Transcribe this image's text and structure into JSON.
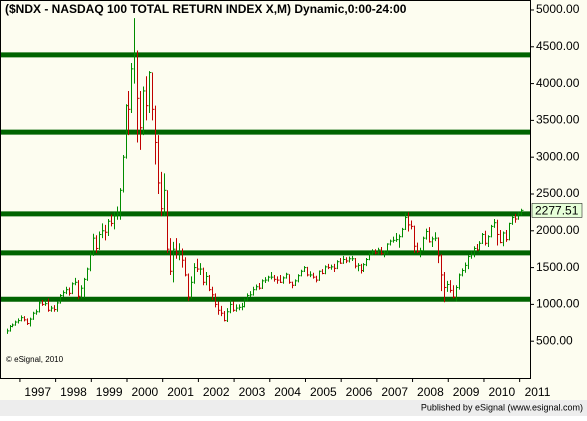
{
  "chart_data": {
    "type": "hlc",
    "title": "($NDX - NASDAQ 100 TOTAL RETURN INDEX X,M) Dynamic,0:00-24:00",
    "watermark": "© eSignal, 2010",
    "footer": "Published by eSignal (www.esignal.com)",
    "up_color": "#008c00",
    "down_color": "#c00000",
    "level_color": "#006400",
    "levels": [
      4390,
      3340,
      2230,
      1700,
      1070
    ],
    "xlim": [
      1996.47,
      2011.29
    ],
    "xticks": [
      1997,
      1998,
      1999,
      2000,
      2001,
      2002,
      2003,
      2004,
      2005,
      2006,
      2007,
      2008,
      2009,
      2010,
      2011
    ],
    "ylim": [
      0,
      5122
    ],
    "yticks": [
      {
        "value": 500,
        "label": "500.00"
      },
      {
        "value": 1000,
        "label": "1000.00"
      },
      {
        "value": 1500,
        "label": "1500.00"
      },
      {
        "value": 2000,
        "label": "2000.00"
      },
      {
        "value": 2500,
        "label": "2500.00"
      },
      {
        "value": 3000,
        "label": "3000.00"
      },
      {
        "value": 3500,
        "label": "3500.00"
      },
      {
        "value": 4000,
        "label": "4000.00"
      },
      {
        "value": 4500,
        "label": "4500.00"
      },
      {
        "value": 5000,
        "label": "5000.00"
      }
    ],
    "x": [
      "1996-08",
      "1996-09",
      "1996-10",
      "1996-11",
      "1996-12",
      "1997-01",
      "1997-02",
      "1997-03",
      "1997-04",
      "1997-05",
      "1997-06",
      "1997-07",
      "1997-08",
      "1997-09",
      "1997-10",
      "1997-11",
      "1997-12",
      "1998-01",
      "1998-02",
      "1998-03",
      "1998-04",
      "1998-05",
      "1998-06",
      "1998-07",
      "1998-08",
      "1998-09",
      "1998-10",
      "1998-11",
      "1998-12",
      "1999-01",
      "1999-02",
      "1999-03",
      "1999-04",
      "1999-05",
      "1999-06",
      "1999-07",
      "1999-08",
      "1999-09",
      "1999-10",
      "1999-11",
      "1999-12",
      "2000-01",
      "2000-02",
      "2000-03",
      "2000-04",
      "2000-05",
      "2000-06",
      "2000-07",
      "2000-08",
      "2000-09",
      "2000-10",
      "2000-11",
      "2000-12",
      "2001-01",
      "2001-02",
      "2001-03",
      "2001-04",
      "2001-05",
      "2001-06",
      "2001-07",
      "2001-08",
      "2001-09",
      "2001-10",
      "2001-11",
      "2001-12",
      "2002-01",
      "2002-02",
      "2002-03",
      "2002-04",
      "2002-05",
      "2002-06",
      "2002-07",
      "2002-08",
      "2002-09",
      "2002-10",
      "2002-11",
      "2002-12",
      "2003-01",
      "2003-02",
      "2003-03",
      "2003-04",
      "2003-05",
      "2003-06",
      "2003-07",
      "2003-08",
      "2003-09",
      "2003-10",
      "2003-11",
      "2003-12",
      "2004-01",
      "2004-02",
      "2004-03",
      "2004-04",
      "2004-05",
      "2004-06",
      "2004-07",
      "2004-08",
      "2004-09",
      "2004-10",
      "2004-11",
      "2004-12",
      "2005-01",
      "2005-02",
      "2005-03",
      "2005-04",
      "2005-05",
      "2005-06",
      "2005-07",
      "2005-08",
      "2005-09",
      "2005-10",
      "2005-11",
      "2005-12",
      "2006-01",
      "2006-02",
      "2006-03",
      "2006-04",
      "2006-05",
      "2006-06",
      "2006-07",
      "2006-08",
      "2006-09",
      "2006-10",
      "2006-11",
      "2006-12",
      "2007-01",
      "2007-02",
      "2007-03",
      "2007-04",
      "2007-05",
      "2007-06",
      "2007-07",
      "2007-08",
      "2007-09",
      "2007-10",
      "2007-11",
      "2007-12",
      "2008-01",
      "2008-02",
      "2008-03",
      "2008-04",
      "2008-05",
      "2008-06",
      "2008-07",
      "2008-08",
      "2008-09",
      "2008-10",
      "2008-11",
      "2008-12",
      "2009-01",
      "2009-02",
      "2009-03",
      "2009-04",
      "2009-05",
      "2009-06",
      "2009-07",
      "2009-08",
      "2009-09",
      "2009-10",
      "2009-11",
      "2009-12",
      "2010-01",
      "2010-02",
      "2010-03",
      "2010-04",
      "2010-05",
      "2010-06",
      "2010-07",
      "2010-08",
      "2010-09",
      "2010-10",
      "2010-11",
      "2010-12",
      "2011-01"
    ],
    "high": [
      670,
      720,
      740,
      780,
      810,
      850,
      840,
      810,
      820,
      900,
      930,
      1050,
      1060,
      1060,
      1080,
      980,
      990,
      1040,
      1140,
      1190,
      1240,
      1230,
      1300,
      1360,
      1330,
      1260,
      1360,
      1500,
      1710,
      1960,
      1940,
      1990,
      2100,
      2080,
      2160,
      2220,
      2250,
      2330,
      2580,
      3030,
      3720,
      3900,
      4280,
      4890,
      4450,
      3900,
      3960,
      4100,
      4170,
      4150,
      3700,
      3300,
      2800,
      2780,
      2550,
      1900,
      1850,
      1900,
      1830,
      1760,
      1640,
      1420,
      1380,
      1560,
      1620,
      1560,
      1500,
      1440,
      1400,
      1240,
      1150,
      1040,
      980,
      910,
      950,
      1060,
      1040,
      1000,
      1000,
      1020,
      1080,
      1150,
      1180,
      1240,
      1270,
      1290,
      1340,
      1370,
      1390,
      1440,
      1400,
      1380,
      1400,
      1380,
      1430,
      1410,
      1310,
      1340,
      1410,
      1470,
      1520,
      1510,
      1450,
      1430,
      1390,
      1460,
      1480,
      1530,
      1550,
      1540,
      1550,
      1600,
      1630,
      1660,
      1640,
      1650,
      1660,
      1630,
      1560,
      1550,
      1560,
      1630,
      1700,
      1750,
      1750,
      1770,
      1780,
      1730,
      1830,
      1880,
      1920,
      1970,
      1950,
      2040,
      2240,
      2250,
      2140,
      2070,
      1840,
      1770,
      1920,
      2030,
      2050,
      1920,
      1980,
      1910,
      1680,
      1440,
      1320,
      1330,
      1260,
      1260,
      1420,
      1490,
      1570,
      1670,
      1720,
      1790,
      1820,
      1860,
      1970,
      2000,
      1940,
      2080,
      2160,
      2150,
      2010,
      1990,
      2010,
      2110,
      2210,
      2230,
      2250,
      2300
    ],
    "low": [
      600,
      630,
      690,
      710,
      740,
      770,
      770,
      720,
      700,
      790,
      860,
      890,
      980,
      980,
      900,
      900,
      900,
      900,
      1010,
      1100,
      1140,
      1120,
      1140,
      1260,
      1070,
      1080,
      1090,
      1320,
      1450,
      1660,
      1700,
      1740,
      1900,
      1870,
      1930,
      2060,
      2020,
      2150,
      2150,
      2520,
      2980,
      3300,
      3600,
      4000,
      3200,
      3100,
      3300,
      3500,
      3600,
      3500,
      2900,
      2500,
      2200,
      2200,
      1700,
      1400,
      1300,
      1620,
      1600,
      1500,
      1380,
      1050,
      1080,
      1280,
      1440,
      1400,
      1260,
      1260,
      1180,
      1060,
      960,
      860,
      840,
      770,
      760,
      880,
      900,
      900,
      920,
      920,
      960,
      1050,
      1100,
      1120,
      1190,
      1200,
      1210,
      1290,
      1310,
      1340,
      1310,
      1280,
      1290,
      1280,
      1350,
      1280,
      1220,
      1250,
      1300,
      1380,
      1440,
      1380,
      1370,
      1350,
      1300,
      1320,
      1410,
      1410,
      1480,
      1470,
      1440,
      1480,
      1550,
      1550,
      1560,
      1570,
      1590,
      1490,
      1450,
      1420,
      1440,
      1520,
      1600,
      1670,
      1680,
      1680,
      1670,
      1640,
      1690,
      1800,
      1840,
      1850,
      1770,
      1910,
      2010,
      1990,
      2020,
      1700,
      1700,
      1640,
      1720,
      1880,
      1840,
      1780,
      1860,
      1560,
      1180,
      1030,
      1170,
      1160,
      1080,
      1040,
      1200,
      1380,
      1430,
      1480,
      1620,
      1640,
      1730,
      1710,
      1820,
      1800,
      1780,
      1910,
      2040,
      1800,
      1830,
      1790,
      1850,
      1870,
      2080,
      2110,
      2150,
      2210
    ],
    "close": [
      640,
      700,
      720,
      760,
      780,
      820,
      790,
      740,
      800,
      880,
      900,
      1020,
      1000,
      1010,
      920,
      950,
      930,
      1020,
      1120,
      1160,
      1200,
      1150,
      1280,
      1300,
      1110,
      1220,
      1340,
      1480,
      1680,
      1900,
      1760,
      1950,
      2000,
      1980,
      2130,
      2100,
      2200,
      2230,
      2550,
      3000,
      3700,
      3650,
      4200,
      4400,
      3800,
      3400,
      3900,
      3700,
      4150,
      3650,
      3200,
      2650,
      2300,
      2550,
      1750,
      1450,
      1750,
      1700,
      1700,
      1600,
      1400,
      1100,
      1300,
      1500,
      1480,
      1480,
      1300,
      1380,
      1200,
      1130,
      1000,
      920,
      880,
      780,
      900,
      1000,
      920,
      950,
      960,
      970,
      1060,
      1120,
      1130,
      1200,
      1240,
      1220,
      1320,
      1330,
      1370,
      1370,
      1340,
      1330,
      1300,
      1360,
      1410,
      1300,
      1260,
      1320,
      1390,
      1450,
      1500,
      1400,
      1400,
      1370,
      1330,
      1450,
      1420,
      1510,
      1500,
      1510,
      1490,
      1580,
      1560,
      1610,
      1590,
      1620,
      1620,
      1520,
      1530,
      1460,
      1540,
      1610,
      1680,
      1710,
      1700,
      1740,
      1690,
      1700,
      1820,
      1860,
      1870,
      1880,
      1920,
      2020,
      2180,
      2080,
      2060,
      1790,
      1720,
      1730,
      1900,
      1990,
      1850,
      1890,
      1900,
      1660,
      1400,
      1230,
      1270,
      1190,
      1100,
      1230,
      1400,
      1460,
      1530,
      1650,
      1680,
      1760,
      1740,
      1830,
      1950,
      1830,
      1920,
      2060,
      2110,
      1950,
      1840,
      1970,
      1880,
      2100,
      2180,
      2160,
      2230,
      2277.51
    ]
  }
}
